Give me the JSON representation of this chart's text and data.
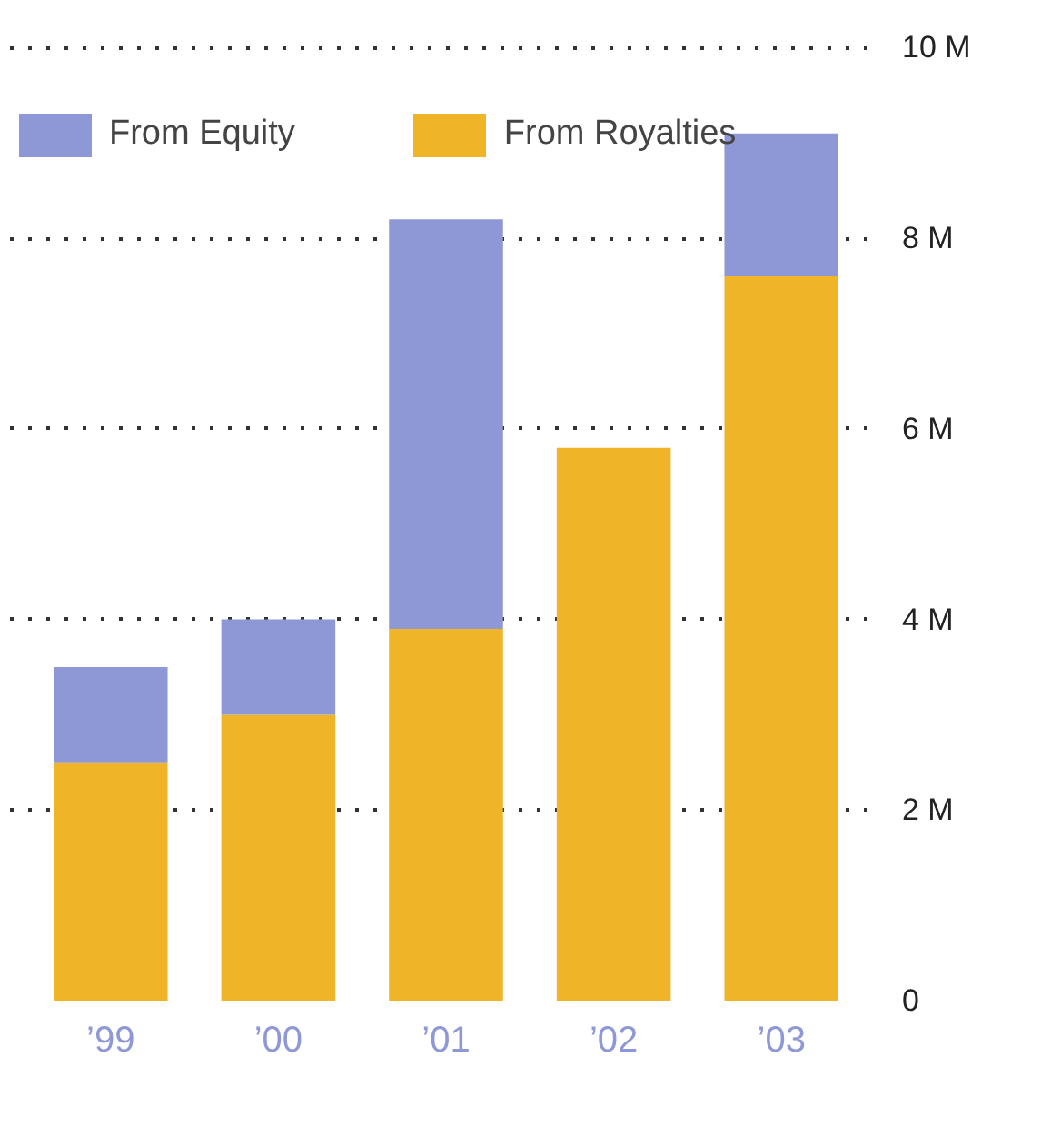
{
  "chart_data": {
    "type": "bar",
    "stacked": true,
    "categories": [
      "’99",
      "’00",
      "’01",
      "’02",
      "’03"
    ],
    "series": [
      {
        "name": "From Royalties",
        "color": "#f0b429",
        "values": [
          2.5,
          3.0,
          3.9,
          5.8,
          7.6
        ]
      },
      {
        "name": "From Equity",
        "color": "#8f98d6",
        "values": [
          1.0,
          1.0,
          4.3,
          0,
          1.5
        ]
      }
    ],
    "ylim": [
      0,
      10
    ],
    "yticks": [
      {
        "value": 0,
        "label": "0"
      },
      {
        "value": 2,
        "label": "2 M"
      },
      {
        "value": 4,
        "label": "4 M"
      },
      {
        "value": 6,
        "label": "6 M"
      },
      {
        "value": 8,
        "label": "8 M"
      },
      {
        "value": 10,
        "label": "10 M"
      }
    ],
    "grid": "y",
    "legend": "top left"
  }
}
